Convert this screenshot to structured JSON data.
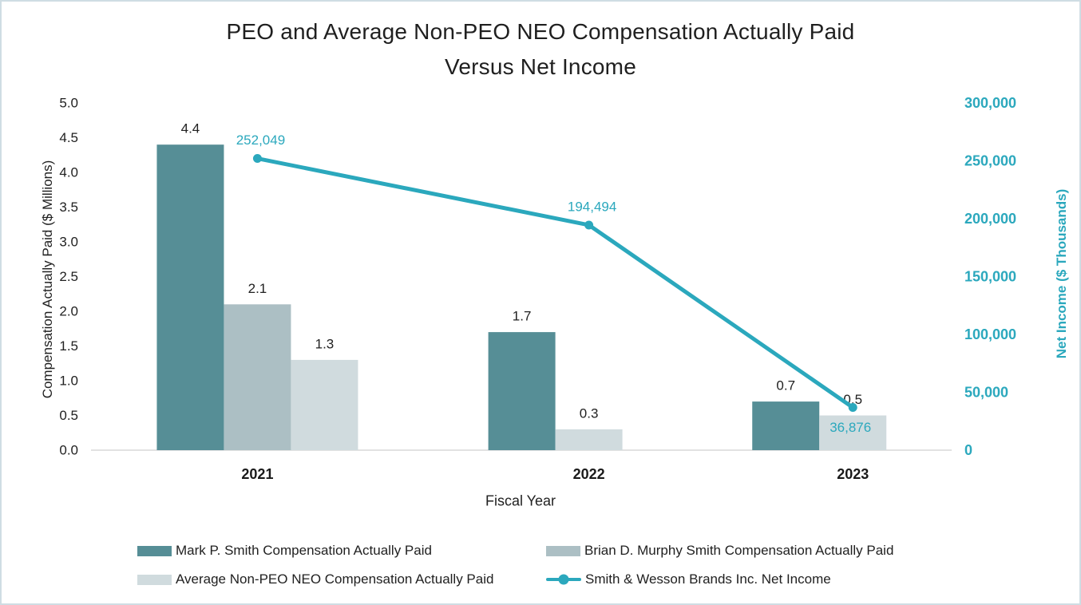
{
  "title": {
    "line1": "PEO and Average Non-PEO NEO Compensation Actually Paid",
    "line2": "Versus Net Income"
  },
  "colors": {
    "bar_mark": "#568E96",
    "bar_brian": "#ACBFC4",
    "bar_avg": "#D0DBDE",
    "line": "#2BA8BD",
    "axis_line": "#D9D9D9",
    "border": "#CFDDE3",
    "text": "#212121"
  },
  "chart_data": {
    "type": "bar",
    "subtype": "grouped-bars-with-line-overlay",
    "categories": [
      "2021",
      "2022",
      "2023"
    ],
    "xlabel": "Fiscal Year",
    "left_axis": {
      "label": "Compensation Actually Paid ($ Millions)",
      "min": 0.0,
      "max": 5.0,
      "step": 0.5,
      "ticks": [
        "0.0",
        "0.5",
        "1.0",
        "1.5",
        "2.0",
        "2.5",
        "3.0",
        "3.5",
        "4.0",
        "4.5",
        "5.0"
      ]
    },
    "right_axis": {
      "label": "Net Income ($ Thousands)",
      "min": 0,
      "max": 300000,
      "step": 50000,
      "ticks": [
        "0",
        "50,000",
        "100,000",
        "150,000",
        "200,000",
        "250,000",
        "300,000"
      ]
    },
    "grid": "off",
    "legend_position": "bottom",
    "bar_series": [
      {
        "key": "mark",
        "name": "Mark P. Smith Compensation Actually Paid",
        "color_key": "bar_mark",
        "values": [
          4.4,
          1.7,
          0.7
        ],
        "labels": [
          "4.4",
          "1.7",
          "0.7"
        ]
      },
      {
        "key": "brian",
        "name": "Brian D. Murphy Smith Compensation Actually Paid",
        "color_key": "bar_brian",
        "values": [
          2.1,
          null,
          null
        ],
        "labels": [
          "2.1",
          null,
          null
        ]
      },
      {
        "key": "avg",
        "name": "Average Non-PEO NEO Compensation Actually Paid",
        "color_key": "bar_avg",
        "values": [
          1.3,
          0.3,
          0.5
        ],
        "labels": [
          "1.3",
          "0.3",
          "0.5"
        ]
      }
    ],
    "line_series": {
      "key": "net-income",
      "name": "Smith & Wesson Brands Inc. Net Income",
      "color_key": "line",
      "values": [
        252049,
        194494,
        36876
      ],
      "labels": [
        "252,049",
        "194,494",
        "36,876"
      ],
      "label_position": [
        "above",
        "above",
        "below"
      ]
    }
  }
}
